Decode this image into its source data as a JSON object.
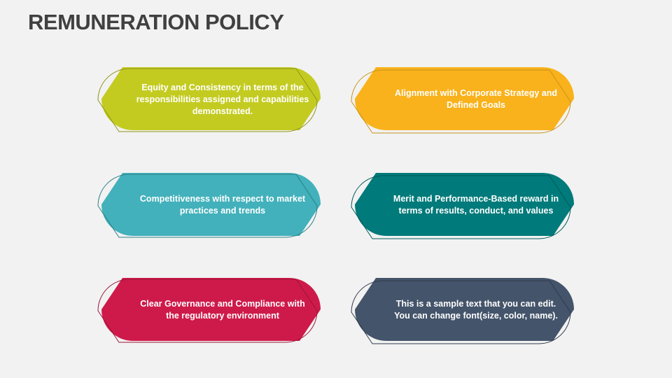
{
  "title": "REMUNERATION POLICY",
  "cards": [
    {
      "text": "Equity and Consistency in terms of the responsibilities assigned and capabilities demonstrated.",
      "color": "#C3CB21",
      "outline": "#8E9418"
    },
    {
      "text": "Alignment with Corporate Strategy and Defined Goals",
      "color": "#F9B21B",
      "outline": "#C8931E"
    },
    {
      "text": "Competitiveness with respect to market practices and trends",
      "color": "#42B1BB",
      "outline": "#2E7F86"
    },
    {
      "text": "Merit and Performance-Based reward in terms of results, conduct, and values",
      "color": "#007A7A",
      "outline": "#005A5A"
    },
    {
      "text": "Clear Governance and Compliance with the regulatory environment",
      "color": "#CE1A4A",
      "outline": "#9A1437"
    },
    {
      "text": "This is a sample text that you can edit. You can change font(size, color, name).",
      "color": "#44546A",
      "outline": "#2F3B4B"
    }
  ]
}
